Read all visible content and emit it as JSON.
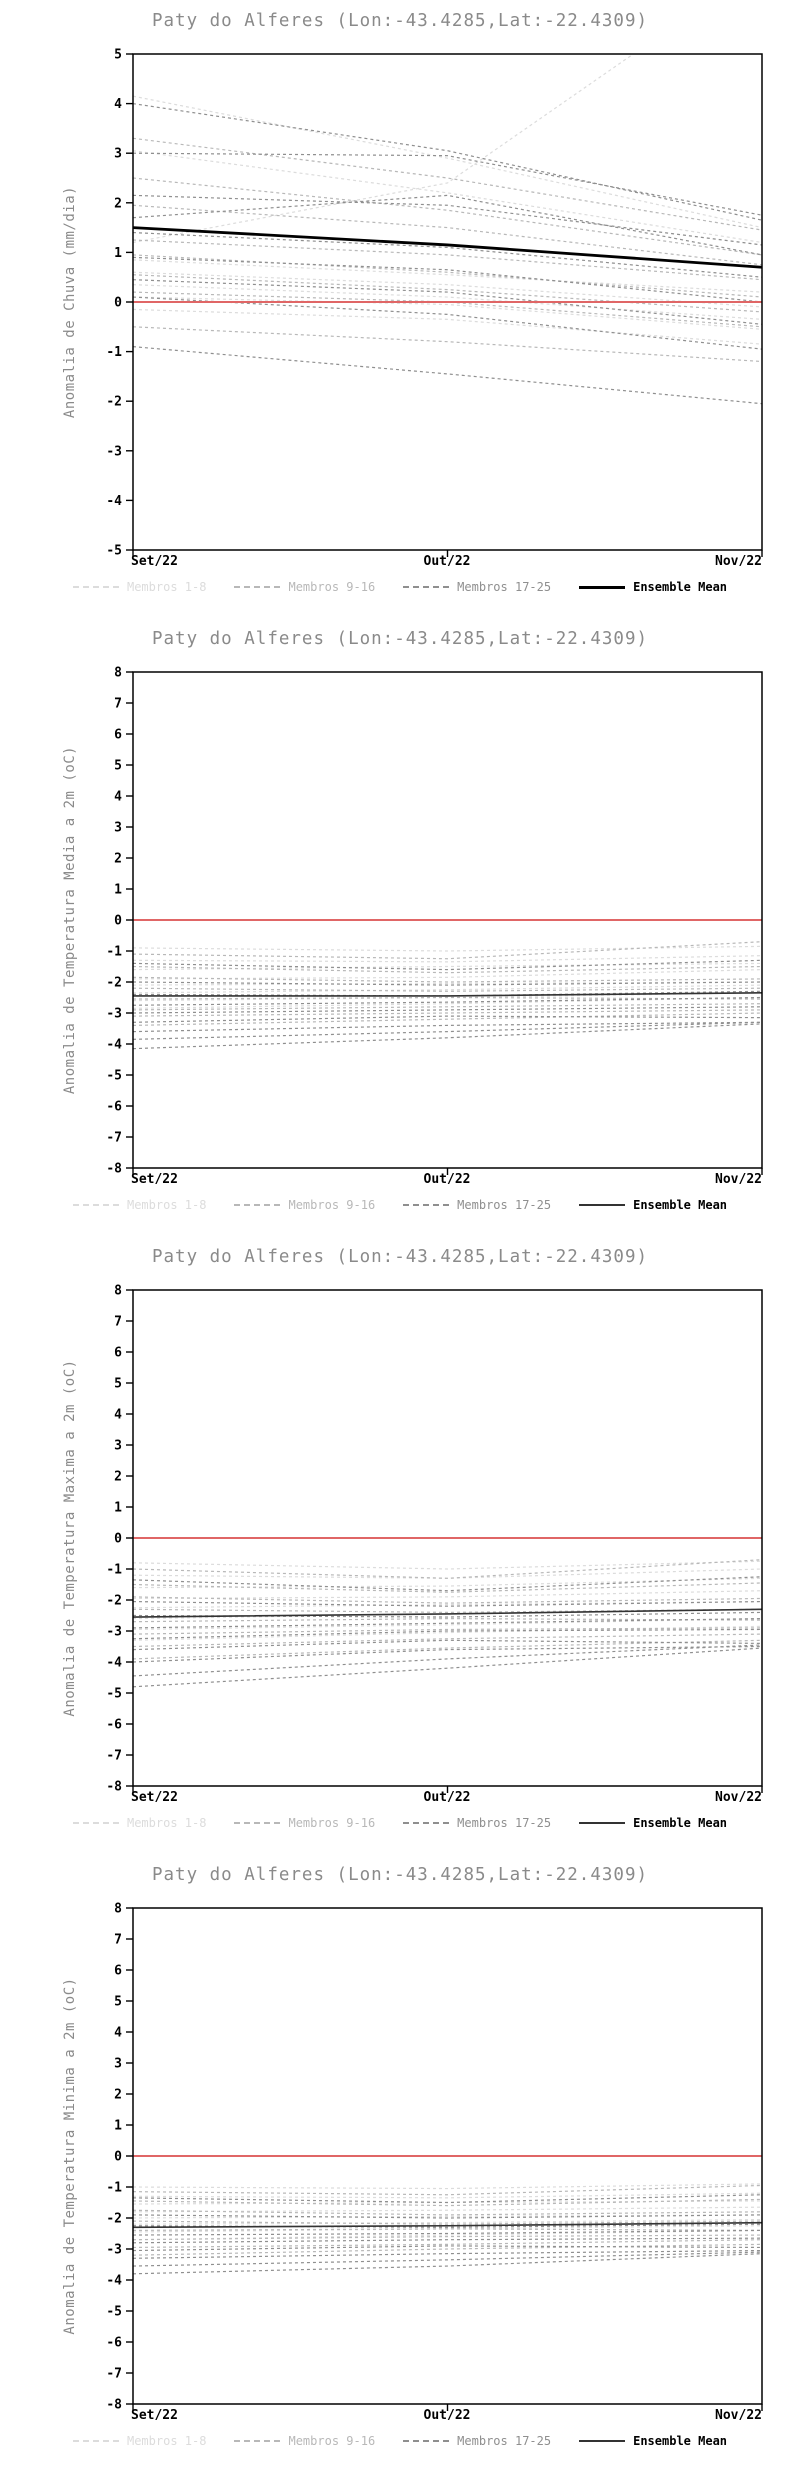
{
  "charts": [
    {
      "title": "Paty do Alferes (Lon:-43.4285,Lat:-22.4309)",
      "ylabel": "Anomalia de Chuva (mm/dia)",
      "chart_data": {
        "type": "line",
        "categories": [
          "Set/22",
          "Out/22",
          "Nov/22"
        ],
        "ylim": [
          -5,
          5
        ],
        "yticks": [
          -5,
          -4,
          -3,
          -2,
          -1,
          0,
          1,
          2,
          3,
          4,
          5
        ],
        "zero_line": {
          "value": 0,
          "color": "#e06666",
          "width": 2
        },
        "series_groups": [
          {
            "name": "Membros 1-8",
            "color": "#dcdcdc",
            "dash": "3 3",
            "width": 1.2,
            "series": [
              [
                4.15,
                2.9,
                1.5
              ],
              [
                3.05,
                2.2,
                1.2
              ],
              [
                1.2,
                2.4,
                6.8
              ],
              [
                0.85,
                0.55,
                0.2
              ],
              [
                0.6,
                0.35,
                -0.1
              ],
              [
                0.35,
                0.1,
                -0.35
              ],
              [
                0.1,
                -0.05,
                -0.55
              ],
              [
                -0.15,
                -0.35,
                -0.85
              ]
            ]
          },
          {
            "name": "Membros 9-16",
            "color": "#b8b8b8",
            "dash": "3 3",
            "width": 1.2,
            "series": [
              [
                3.3,
                2.5,
                1.45
              ],
              [
                2.5,
                1.85,
                0.95
              ],
              [
                1.95,
                1.5,
                0.75
              ],
              [
                1.25,
                0.95,
                0.45
              ],
              [
                0.95,
                0.6,
                0.1
              ],
              [
                0.55,
                0.25,
                -0.2
              ],
              [
                0.2,
                0,
                -0.5
              ],
              [
                -0.5,
                -0.8,
                -1.2
              ]
            ]
          },
          {
            "name": "Membros 17-25",
            "color": "#8f8f8f",
            "dash": "3 3",
            "width": 1.2,
            "series": [
              [
                4,
                3.05,
                1.65
              ],
              [
                3,
                2.95,
                1.75
              ],
              [
                2.15,
                1.95,
                1.15
              ],
              [
                1.7,
                2.15,
                0.95
              ],
              [
                1.4,
                1.1,
                0.5
              ],
              [
                0.9,
                0.65,
                0
              ],
              [
                0.45,
                0.2,
                -0.45
              ],
              [
                0.1,
                -0.25,
                -0.95
              ],
              [
                -0.9,
                -1.45,
                -2.05
              ]
            ]
          },
          {
            "name": "Ensemble Mean",
            "color": "#000000",
            "dash": "",
            "width": 2.8,
            "series": [
              [
                1.5,
                1.15,
                0.7
              ]
            ]
          }
        ]
      }
    },
    {
      "title": "Paty do Alferes (Lon:-43.4285,Lat:-22.4309)",
      "ylabel": "Anomalia de Temperatura Media a 2m (oC)",
      "chart_data": {
        "type": "line",
        "categories": [
          "Set/22",
          "Out/22",
          "Nov/22"
        ],
        "ylim": [
          -8,
          8
        ],
        "yticks": [
          -8,
          -7,
          -6,
          -5,
          -4,
          -3,
          -2,
          -1,
          0,
          1,
          2,
          3,
          4,
          5,
          6,
          7,
          8
        ],
        "zero_line": {
          "value": 0,
          "color": "#e06666",
          "width": 2
        },
        "series_groups": [
          {
            "name": "Membros 1-8",
            "color": "#dcdcdc",
            "dash": "3 3",
            "width": 1.2,
            "series": [
              [
                -0.9,
                -1,
                -0.85
              ],
              [
                -1.3,
                -1.35,
                -1.15
              ],
              [
                -1.6,
                -1.5,
                -1.4
              ],
              [
                -1.9,
                -1.85,
                -1.6
              ],
              [
                -2.1,
                -2.05,
                -2
              ],
              [
                -2.35,
                -2.25,
                -2.1
              ],
              [
                -2.6,
                -2.5,
                -2.35
              ],
              [
                -2.85,
                -2.7,
                -2.5
              ]
            ]
          },
          {
            "name": "Membros 9-16",
            "color": "#b8b8b8",
            "dash": "3 3",
            "width": 1.2,
            "series": [
              [
                -1.1,
                -1.25,
                -0.7
              ],
              [
                -1.5,
                -1.7,
                -1.5
              ],
              [
                -1.85,
                -2,
                -1.9
              ],
              [
                -2.2,
                -2.3,
                -2.2
              ],
              [
                -2.55,
                -2.5,
                -2.55
              ],
              [
                -2.9,
                -2.8,
                -2.7
              ],
              [
                -3.1,
                -3,
                -2.9
              ],
              [
                -3.4,
                -3.2,
                -3
              ]
            ]
          },
          {
            "name": "Membros 17-25",
            "color": "#8f8f8f",
            "dash": "3 3",
            "width": 1.2,
            "series": [
              [
                -1.4,
                -1.6,
                -1.3
              ],
              [
                -2,
                -2.1,
                -2
              ],
              [
                -2.4,
                -2.45,
                -2.3
              ],
              [
                -2.75,
                -2.65,
                -2.5
              ],
              [
                -3,
                -2.9,
                -2.8
              ],
              [
                -3.3,
                -3.1,
                -3.15
              ],
              [
                -3.6,
                -3.4,
                -3.3
              ],
              [
                -3.85,
                -3.6,
                -3.3
              ],
              [
                -4.15,
                -3.8,
                -3.35
              ]
            ]
          },
          {
            "name": "Ensemble Mean",
            "color": "#333333",
            "dash": "",
            "width": 1.6,
            "series": [
              [
                -2.45,
                -2.45,
                -2.35
              ]
            ]
          }
        ]
      }
    },
    {
      "title": "Paty do Alferes (Lon:-43.4285,Lat:-22.4309)",
      "ylabel": "Anomalia de Temperatura Maxima a 2m (oC)",
      "chart_data": {
        "type": "line",
        "categories": [
          "Set/22",
          "Out/22",
          "Nov/22"
        ],
        "ylim": [
          -8,
          8
        ],
        "yticks": [
          -8,
          -7,
          -6,
          -5,
          -4,
          -3,
          -2,
          -1,
          0,
          1,
          2,
          3,
          4,
          5,
          6,
          7,
          8
        ],
        "zero_line": {
          "value": 0,
          "color": "#e06666",
          "width": 2
        },
        "series_groups": [
          {
            "name": "Membros 1-8",
            "color": "#dcdcdc",
            "dash": "3 3",
            "width": 1.2,
            "series": [
              [
                -0.8,
                -1,
                -0.75
              ],
              [
                -1.2,
                -1.3,
                -1
              ],
              [
                -1.6,
                -1.55,
                -1.3
              ],
              [
                -1.95,
                -1.9,
                -1.7
              ],
              [
                -2.25,
                -2.15,
                -2.05
              ],
              [
                -2.6,
                -2.45,
                -2.3
              ],
              [
                -2.95,
                -2.8,
                -2.6
              ],
              [
                -3.3,
                -3.05,
                -2.85
              ]
            ]
          },
          {
            "name": "Membros 9-16",
            "color": "#b8b8b8",
            "dash": "3 3",
            "width": 1.2,
            "series": [
              [
                -1,
                -1.3,
                -0.7
              ],
              [
                -1.5,
                -1.75,
                -1.45
              ],
              [
                -1.9,
                -2.1,
                -1.95
              ],
              [
                -2.3,
                -2.4,
                -2.3
              ],
              [
                -2.7,
                -2.6,
                -2.65
              ],
              [
                -3.1,
                -2.95,
                -2.9
              ],
              [
                -3.5,
                -3.25,
                -3.1
              ],
              [
                -3.9,
                -3.55,
                -3.3
              ]
            ]
          },
          {
            "name": "Membros 17-25",
            "color": "#8f8f8f",
            "dash": "3 3",
            "width": 1.2,
            "series": [
              [
                -1.35,
                -1.7,
                -1.25
              ],
              [
                -2.05,
                -2.2,
                -2.05
              ],
              [
                -2.5,
                -2.55,
                -2.4
              ],
              [
                -2.9,
                -2.75,
                -2.6
              ],
              [
                -3.25,
                -3,
                -2.95
              ],
              [
                -3.6,
                -3.3,
                -3.4
              ],
              [
                -4,
                -3.6,
                -3.5
              ],
              [
                -4.45,
                -3.9,
                -3.45
              ],
              [
                -4.8,
                -4.2,
                -3.55
              ]
            ]
          },
          {
            "name": "Ensemble Mean",
            "color": "#333333",
            "dash": "",
            "width": 1.6,
            "series": [
              [
                -2.55,
                -2.45,
                -2.3
              ]
            ]
          }
        ]
      }
    },
    {
      "title": "Paty do Alferes (Lon:-43.4285,Lat:-22.4309)",
      "ylabel": "Anomalia de Temperatura Minima a 2m (oC)",
      "chart_data": {
        "type": "line",
        "categories": [
          "Set/22",
          "Out/22",
          "Nov/22"
        ],
        "ylim": [
          -8,
          8
        ],
        "yticks": [
          -8,
          -7,
          -6,
          -5,
          -4,
          -3,
          -2,
          -1,
          0,
          1,
          2,
          3,
          4,
          5,
          6,
          7,
          8
        ],
        "zero_line": {
          "value": 0,
          "color": "#e06666",
          "width": 2
        },
        "series_groups": [
          {
            "name": "Membros 1-8",
            "color": "#dcdcdc",
            "dash": "3 3",
            "width": 1.2,
            "series": [
              [
                -1,
                -1.05,
                -0.9
              ],
              [
                -1.3,
                -1.35,
                -1.2
              ],
              [
                -1.55,
                -1.5,
                -1.45
              ],
              [
                -1.8,
                -1.75,
                -1.65
              ],
              [
                -2,
                -1.95,
                -1.9
              ],
              [
                -2.2,
                -2.15,
                -2.05
              ],
              [
                -2.45,
                -2.35,
                -2.25
              ],
              [
                -2.7,
                -2.55,
                -2.4
              ]
            ]
          },
          {
            "name": "Membros 9-16",
            "color": "#b8b8b8",
            "dash": "3 3",
            "width": 1.2,
            "series": [
              [
                -1.15,
                -1.25,
                -0.95
              ],
              [
                -1.45,
                -1.6,
                -1.4
              ],
              [
                -1.75,
                -1.9,
                -1.8
              ],
              [
                -2.1,
                -2.2,
                -2.1
              ],
              [
                -2.4,
                -2.35,
                -2.4
              ],
              [
                -2.7,
                -2.6,
                -2.55
              ],
              [
                -2.95,
                -2.85,
                -2.7
              ],
              [
                -3.2,
                -3,
                -2.85
              ]
            ]
          },
          {
            "name": "Membros 17-25",
            "color": "#8f8f8f",
            "dash": "3 3",
            "width": 1.2,
            "series": [
              [
                -1.35,
                -1.5,
                -1.25
              ],
              [
                -1.9,
                -2,
                -1.9
              ],
              [
                -2.25,
                -2.3,
                -2.2
              ],
              [
                -2.55,
                -2.5,
                -2.4
              ],
              [
                -2.8,
                -2.7,
                -2.65
              ],
              [
                -3.05,
                -2.9,
                -2.95
              ],
              [
                -3.3,
                -3.15,
                -3.05
              ],
              [
                -3.55,
                -3.35,
                -3.1
              ],
              [
                -3.8,
                -3.55,
                -3.15
              ]
            ]
          },
          {
            "name": "Ensemble Mean",
            "color": "#333333",
            "dash": "",
            "width": 1.6,
            "series": [
              [
                -2.3,
                -2.25,
                -2.15
              ]
            ]
          }
        ]
      }
    }
  ]
}
